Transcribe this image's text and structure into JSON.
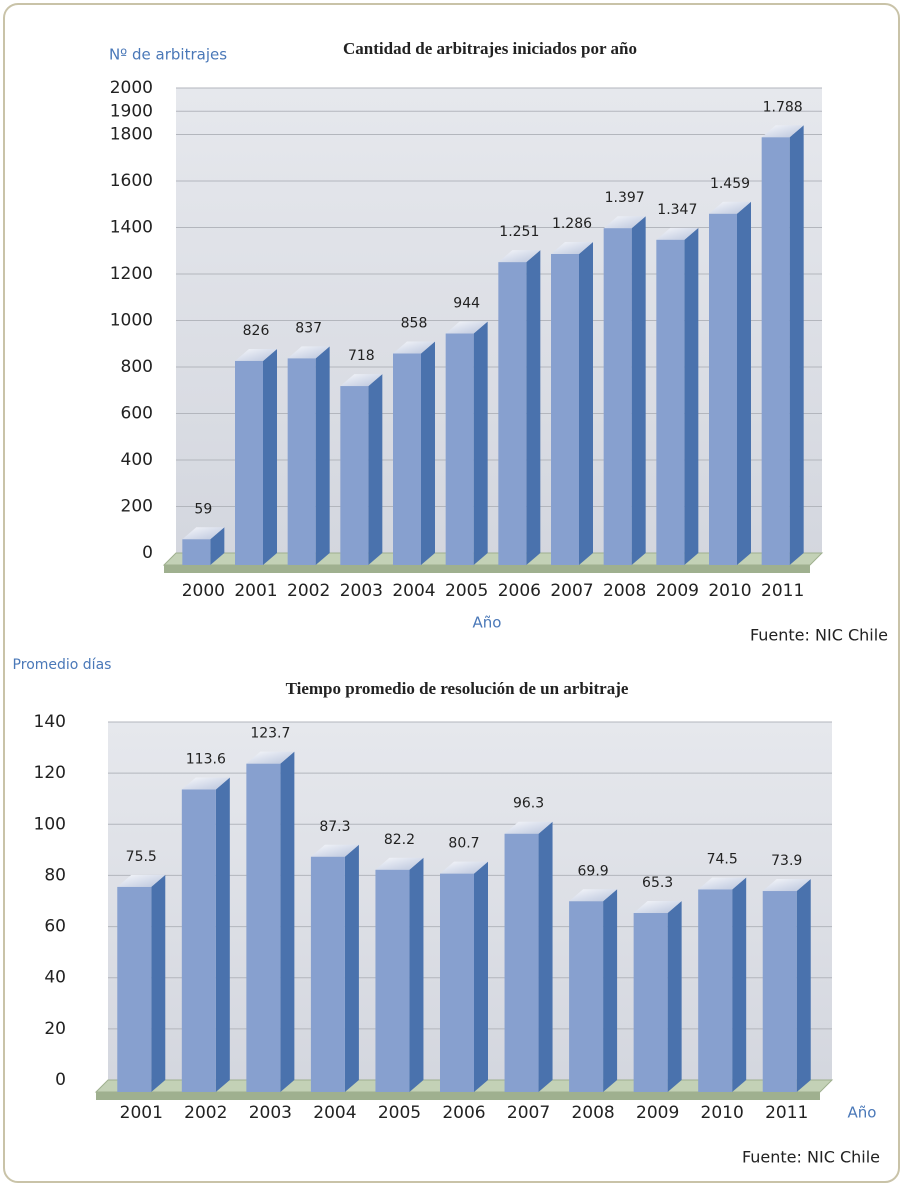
{
  "chart_data": [
    {
      "type": "bar3d",
      "title": "Cantidad de arbitrajes iniciados por año",
      "y_label": "Nº de arbitrajes",
      "x_label": "Año",
      "source": "Fuente: NIC Chile",
      "categories": [
        "2000",
        "2001",
        "2002",
        "2003",
        "2004",
        "2005",
        "2006",
        "2007",
        "2008",
        "2009",
        "2010",
        "2011"
      ],
      "values": [
        59,
        826,
        837,
        718,
        858,
        944,
        1251,
        1286,
        1397,
        1347,
        1459,
        1788
      ],
      "value_labels": [
        "59",
        "826",
        "837",
        "718",
        "858",
        "944",
        "1.251",
        "1.286",
        "1.397",
        "1.347",
        "1.459",
        "1.788"
      ],
      "color": "#87a0cf",
      "ylim": [
        0,
        2000
      ],
      "yticks": [
        0,
        200,
        400,
        600,
        800,
        1000,
        1200,
        1400,
        1600,
        1800,
        1900,
        2000
      ],
      "grid": true
    },
    {
      "type": "bar3d",
      "title": "Tiempo promedio de resolución de un arbitraje",
      "y_label": "Promedio días",
      "x_label": "Año",
      "source": "Fuente: NIC Chile",
      "categories": [
        "2001",
        "2002",
        "2003",
        "2004",
        "2005",
        "2006",
        "2007",
        "2008",
        "2009",
        "2010",
        "2011"
      ],
      "values": [
        75.5,
        113.6,
        123.7,
        87.3,
        82.2,
        80.7,
        96.3,
        69.9,
        65.3,
        74.5,
        73.9
      ],
      "value_labels": [
        "75.5",
        "113.6",
        "123.7",
        "87.3",
        "82.2",
        "80.7",
        "96.3",
        "69.9",
        "65.3",
        "74.5",
        "73.9"
      ],
      "color": "#87a0cf",
      "ylim": [
        0,
        140
      ],
      "yticks": [
        0,
        20,
        40,
        60,
        80,
        100,
        120,
        140
      ],
      "grid": true
    }
  ]
}
